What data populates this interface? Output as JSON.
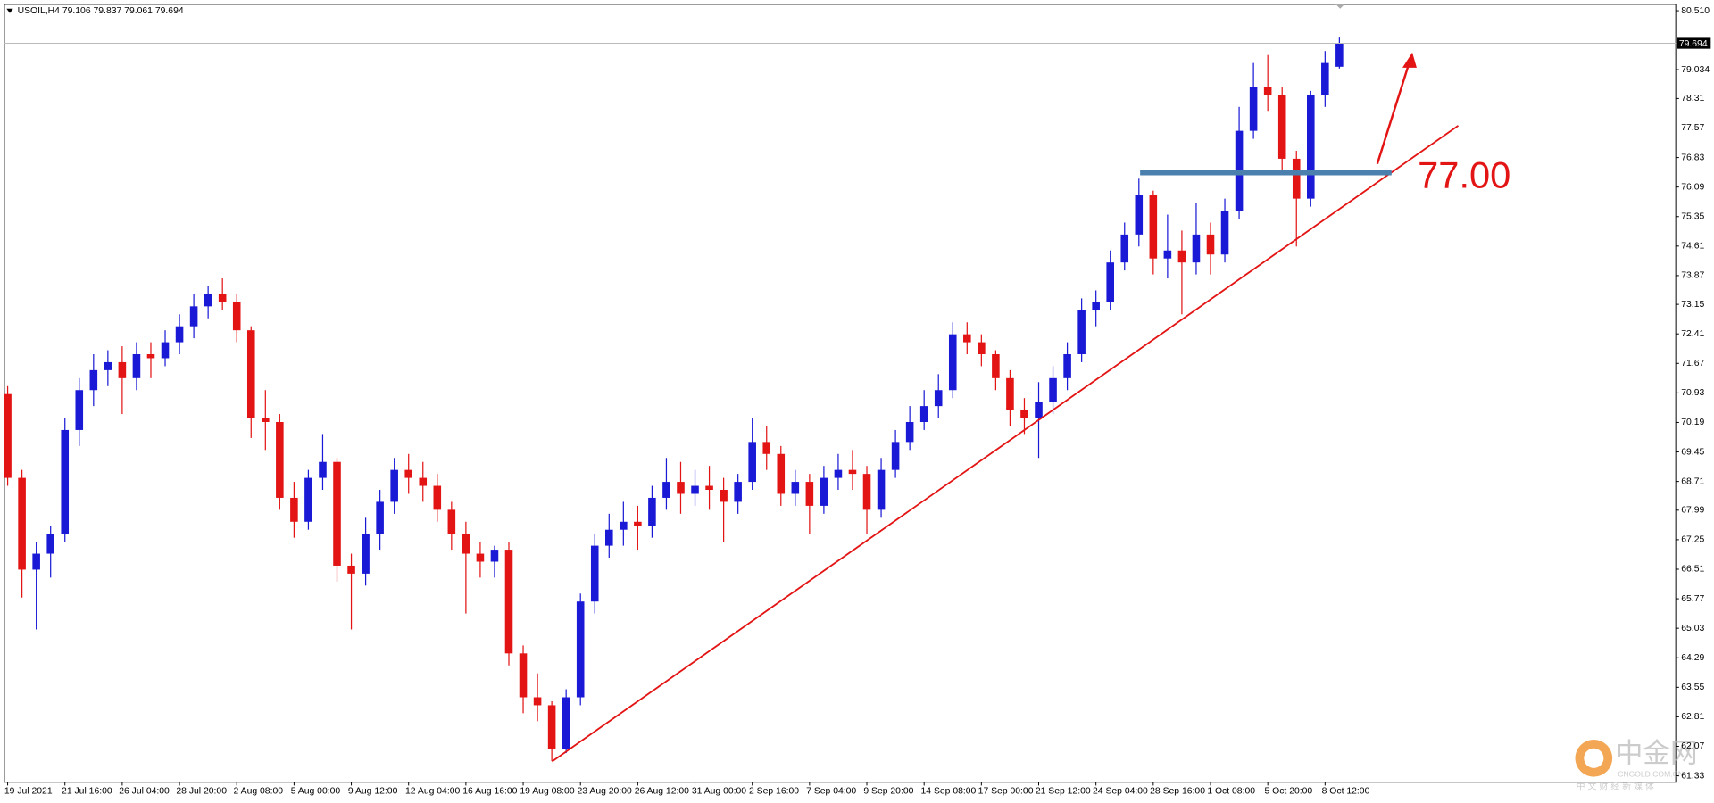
{
  "chart_data": {
    "type": "candlestick",
    "symbol": "USOIL,H4",
    "annotation": "77.00",
    "watermark": {
      "name": "中金网",
      "url": "CNGOLD.COM.CN",
      "tagline": "中 文 财 经 新 媒 体"
    },
    "up_color": "#1a1ad6",
    "down_color": "#e31414",
    "categories": [
      "19 Jul 2021",
      null,
      null,
      null,
      "21 Jul 16:00",
      null,
      null,
      null,
      "26 Jul 04:00",
      null,
      null,
      null,
      "28 Jul 20:00",
      null,
      null,
      null,
      "2 Aug 08:00",
      null,
      null,
      null,
      "5 Aug 00:00",
      null,
      null,
      null,
      "9 Aug 12:00",
      null,
      null,
      null,
      "12 Aug 04:00",
      null,
      null,
      null,
      "16 Aug 16:00",
      null,
      null,
      null,
      "19 Aug 08:00",
      null,
      null,
      null,
      "23 Aug 20:00",
      null,
      null,
      null,
      "26 Aug 12:00",
      null,
      null,
      null,
      "31 Aug 00:00",
      null,
      null,
      null,
      "2 Sep 16:00",
      null,
      null,
      null,
      "7 Sep 04:00",
      null,
      null,
      null,
      "9 Sep 20:00",
      null,
      null,
      null,
      "14 Sep 08:00",
      null,
      null,
      null,
      "17 Sep 00:00",
      null,
      null,
      null,
      "21 Sep 12:00",
      null,
      null,
      null,
      "24 Sep 04:00",
      null,
      null,
      null,
      "28 Sep 16:00",
      null,
      null,
      null,
      "1 Oct 08:00",
      null,
      null,
      null,
      "5 Oct 20:00",
      null,
      null,
      null,
      "8 Oct 12:00",
      null
    ],
    "open": [
      70.9,
      68.8,
      66.5,
      66.9,
      67.4,
      70.0,
      71.0,
      71.5,
      71.7,
      71.3,
      71.9,
      71.8,
      72.2,
      72.6,
      73.1,
      73.4,
      73.2,
      72.5,
      70.3,
      70.2,
      68.3,
      67.7,
      68.8,
      69.2,
      66.6,
      66.4,
      67.4,
      68.2,
      69.0,
      68.8,
      68.6,
      68.0,
      67.4,
      66.9,
      66.7,
      67.0,
      64.4,
      63.3,
      63.1,
      62.0,
      63.3,
      65.7,
      67.1,
      67.5,
      67.7,
      67.6,
      68.3,
      68.7,
      68.4,
      68.6,
      68.5,
      68.2,
      68.7,
      69.7,
      69.4,
      68.4,
      68.7,
      68.1,
      68.8,
      69.0,
      68.9,
      68.0,
      69.0,
      69.7,
      70.2,
      70.6,
      71.0,
      72.4,
      72.2,
      71.9,
      71.3,
      70.5,
      70.3,
      70.7,
      71.3,
      71.9,
      73.0,
      73.2,
      74.2,
      74.9,
      75.9,
      74.3,
      74.5,
      74.2,
      74.9,
      74.4,
      75.5,
      77.5,
      78.6,
      78.4,
      76.8,
      75.8,
      78.4,
      79.106
    ],
    "high": [
      71.1,
      69.0,
      67.2,
      67.6,
      70.3,
      71.3,
      71.9,
      72.0,
      72.1,
      72.2,
      72.2,
      72.5,
      72.9,
      73.4,
      73.6,
      73.8,
      73.4,
      72.6,
      71.0,
      70.4,
      68.7,
      69.0,
      69.9,
      69.3,
      66.9,
      67.8,
      68.5,
      69.3,
      69.4,
      69.2,
      68.9,
      68.2,
      67.7,
      67.2,
      67.1,
      67.2,
      64.6,
      63.9,
      63.2,
      63.5,
      65.9,
      67.4,
      67.9,
      68.2,
      68.1,
      68.6,
      69.3,
      69.2,
      69.0,
      69.1,
      68.8,
      68.9,
      70.3,
      70.1,
      69.6,
      69.0,
      68.9,
      69.1,
      69.4,
      69.5,
      69.1,
      69.3,
      70.0,
      70.6,
      71.0,
      71.4,
      72.7,
      72.7,
      72.4,
      72.0,
      71.5,
      70.8,
      71.2,
      71.6,
      72.2,
      73.3,
      73.5,
      74.5,
      75.2,
      76.3,
      76.0,
      75.4,
      75.0,
      75.7,
      75.2,
      75.8,
      78.1,
      79.2,
      79.4,
      78.6,
      77.0,
      78.5,
      79.5,
      79.837
    ],
    "low": [
      68.6,
      65.8,
      65.0,
      66.3,
      67.2,
      69.6,
      70.6,
      71.1,
      70.4,
      71.0,
      71.3,
      71.6,
      71.9,
      72.3,
      72.8,
      73.0,
      72.2,
      69.8,
      69.5,
      68.0,
      67.3,
      67.5,
      68.5,
      66.2,
      65.0,
      66.1,
      67.0,
      67.9,
      68.4,
      68.2,
      67.7,
      67.0,
      65.4,
      66.3,
      66.3,
      64.1,
      62.9,
      62.7,
      61.7,
      61.9,
      63.1,
      65.4,
      66.8,
      67.1,
      67.0,
      67.3,
      68.0,
      67.9,
      68.1,
      68.0,
      67.2,
      67.9,
      68.5,
      69.0,
      68.1,
      68.1,
      67.4,
      67.9,
      68.5,
      68.5,
      67.4,
      67.8,
      68.8,
      69.5,
      70.0,
      70.3,
      70.8,
      71.9,
      71.6,
      71.0,
      70.1,
      69.9,
      69.3,
      70.4,
      71.0,
      71.7,
      72.6,
      73.0,
      74.0,
      74.6,
      73.9,
      73.8,
      72.9,
      73.9,
      73.9,
      74.2,
      75.3,
      77.3,
      78.0,
      76.5,
      74.6,
      75.6,
      78.1,
      79.061
    ],
    "close": [
      68.8,
      66.5,
      66.9,
      67.4,
      70.0,
      71.0,
      71.5,
      71.7,
      71.3,
      71.9,
      71.8,
      72.2,
      72.6,
      73.1,
      73.4,
      73.2,
      72.5,
      70.3,
      70.2,
      68.3,
      67.7,
      68.8,
      69.2,
      66.6,
      66.4,
      67.4,
      68.2,
      69.0,
      68.8,
      68.6,
      68.0,
      67.4,
      66.9,
      66.7,
      67.0,
      64.4,
      63.3,
      63.1,
      62.0,
      63.3,
      65.7,
      67.1,
      67.5,
      67.7,
      67.6,
      68.3,
      68.7,
      68.4,
      68.6,
      68.5,
      68.2,
      68.7,
      69.7,
      69.4,
      68.4,
      68.7,
      68.1,
      68.8,
      69.0,
      68.9,
      68.0,
      69.0,
      69.7,
      70.2,
      70.6,
      71.0,
      72.4,
      72.2,
      71.9,
      71.3,
      70.5,
      70.3,
      70.7,
      71.3,
      71.9,
      73.0,
      73.2,
      74.2,
      74.9,
      75.9,
      74.3,
      74.5,
      74.2,
      74.9,
      74.4,
      75.5,
      77.5,
      78.6,
      78.4,
      76.8,
      75.8,
      78.4,
      79.2,
      79.694
    ],
    "ylim": [
      61.17,
      80.67
    ],
    "yticks": [
      {
        "value": 80.51,
        "label": "80.510"
      },
      79.034,
      78.31,
      77.57,
      76.83,
      76.09,
      75.35,
      74.61,
      73.87,
      73.15,
      72.41,
      71.67,
      70.93,
      70.19,
      69.45,
      68.71,
      67.99,
      67.25,
      66.51,
      65.77,
      65.03,
      64.29,
      63.55,
      62.81,
      62.07,
      61.33
    ]
  }
}
